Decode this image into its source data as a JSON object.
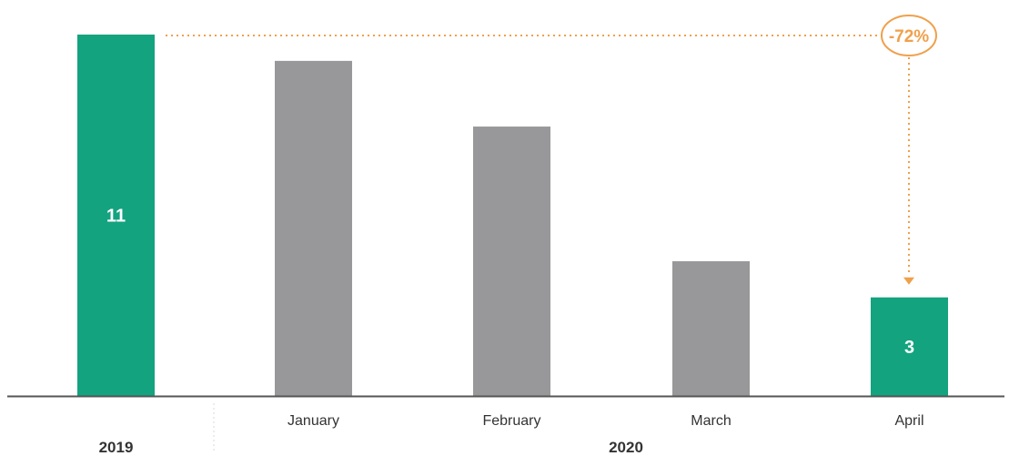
{
  "chart_data": {
    "type": "bar",
    "title": "",
    "xlabel": "",
    "ylabel": "",
    "ylim": [
      0,
      11
    ],
    "grid": false,
    "legend": "none",
    "categories": [
      "2019",
      "January",
      "February",
      "March",
      "April"
    ],
    "values": [
      11,
      10.2,
      8.2,
      4.1,
      3
    ],
    "data_labels": [
      "11",
      "",
      "",
      "",
      "3"
    ],
    "highlight": [
      true,
      false,
      false,
      false,
      true
    ],
    "groups": [
      {
        "label": "2019",
        "categories": [
          "2019"
        ]
      },
      {
        "label": "2020",
        "categories": [
          "January",
          "February",
          "March",
          "April"
        ]
      }
    ],
    "annotation": {
      "text": "-72%",
      "from_category": "2019",
      "to_category": "April"
    },
    "colors": {
      "highlight": "#13a37f",
      "base": "#98989a",
      "annotation": "#f0a04b",
      "axis": "#555555",
      "separator": "#d8d8d8",
      "label_on_bar": "#ffffff",
      "text": "#333333"
    }
  }
}
